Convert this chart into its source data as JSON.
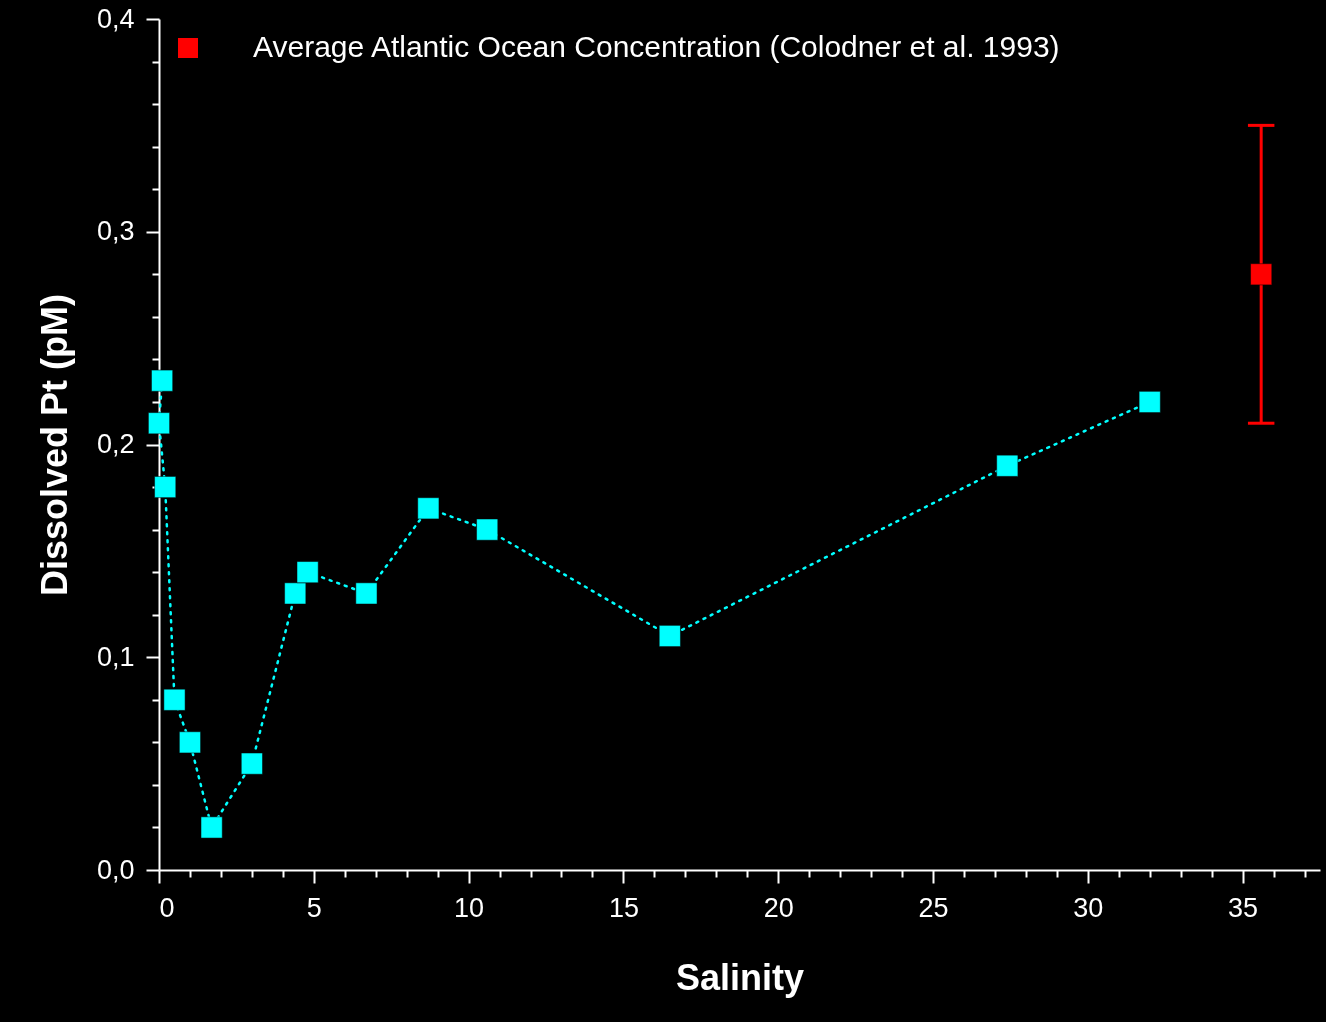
{
  "chart_data": {
    "type": "line",
    "xlabel": "Salinity",
    "ylabel": "Dissolved Pt (pM)",
    "series": [
      {
        "color": "#00ffff",
        "x": [
          0.1,
          0.0,
          0.2,
          0.5,
          1.0,
          1.7,
          3.0,
          4.4,
          4.8,
          6.7,
          8.7,
          10.6,
          16.5,
          27.4,
          32.0
        ],
        "values": [
          0.23,
          0.21,
          0.18,
          0.08,
          0.06,
          0.02,
          0.05,
          0.13,
          0.14,
          0.13,
          0.17,
          0.16,
          0.11,
          0.19,
          0.22
        ],
        "line_style": "dotted",
        "marker": "square"
      },
      {
        "type": "scatter",
        "name": "Average Atlantic Ocean Concentration (Colodner et al. 1993)",
        "color": "#ff0000",
        "x": [
          35.6
        ],
        "values": [
          0.28
        ],
        "errors": [
          [
            0.21,
            0.35
          ]
        ],
        "marker": "square"
      }
    ],
    "xlim": [
      0,
      37.5
    ],
    "xticks": [
      0,
      {
        "value": 1,
        "label": null
      },
      {
        "value": 2,
        "label": null
      },
      {
        "value": 3,
        "label": null
      },
      {
        "value": 4,
        "label": null
      },
      5,
      {
        "value": 6,
        "label": null
      },
      {
        "value": 7,
        "label": null
      },
      {
        "value": 8,
        "label": null
      },
      {
        "value": 9,
        "label": null
      },
      10,
      {
        "value": 11,
        "label": null
      },
      {
        "value": 12,
        "label": null
      },
      {
        "value": 13,
        "label": null
      },
      {
        "value": 14,
        "label": null
      },
      15,
      {
        "value": 16,
        "label": null
      },
      {
        "value": 17,
        "label": null
      },
      {
        "value": 18,
        "label": null
      },
      {
        "value": 19,
        "label": null
      },
      20,
      {
        "value": 21,
        "label": null
      },
      {
        "value": 22,
        "label": null
      },
      {
        "value": 23,
        "label": null
      },
      {
        "value": 24,
        "label": null
      },
      25,
      {
        "value": 26,
        "label": null
      },
      {
        "value": 27,
        "label": null
      },
      {
        "value": 28,
        "label": null
      },
      {
        "value": 29,
        "label": null
      },
      30,
      {
        "value": 31,
        "label": null
      },
      {
        "value": 32,
        "label": null
      },
      {
        "value": 33,
        "label": null
      },
      {
        "value": 34,
        "label": null
      },
      35,
      {
        "value": 36,
        "label": null
      },
      {
        "value": 37,
        "label": null
      }
    ],
    "ylim": [
      0,
      0.4
    ],
    "yticks": [
      {
        "value": 0,
        "label": "0,0"
      },
      {
        "value": 0.02,
        "label": null
      },
      {
        "value": 0.04,
        "label": null
      },
      {
        "value": 0.06,
        "label": null
      },
      {
        "value": 0.08,
        "label": null
      },
      {
        "value": 0.1,
        "label": "0,1"
      },
      {
        "value": 0.12,
        "label": null
      },
      {
        "value": 0.14,
        "label": null
      },
      {
        "value": 0.16,
        "label": null
      },
      {
        "value": 0.18,
        "label": null
      },
      {
        "value": 0.2,
        "label": "0,2"
      },
      {
        "value": 0.22,
        "label": null
      },
      {
        "value": 0.24,
        "label": null
      },
      {
        "value": 0.26,
        "label": null
      },
      {
        "value": 0.28,
        "label": null
      },
      {
        "value": 0.3,
        "label": "0,3"
      },
      {
        "value": 0.32,
        "label": null
      },
      {
        "value": 0.34,
        "label": null
      },
      {
        "value": 0.36,
        "label": null
      },
      {
        "value": 0.38,
        "label": null
      },
      {
        "value": 0.4,
        "label": "0,4"
      }
    ],
    "grid": false,
    "legend": "top left"
  }
}
